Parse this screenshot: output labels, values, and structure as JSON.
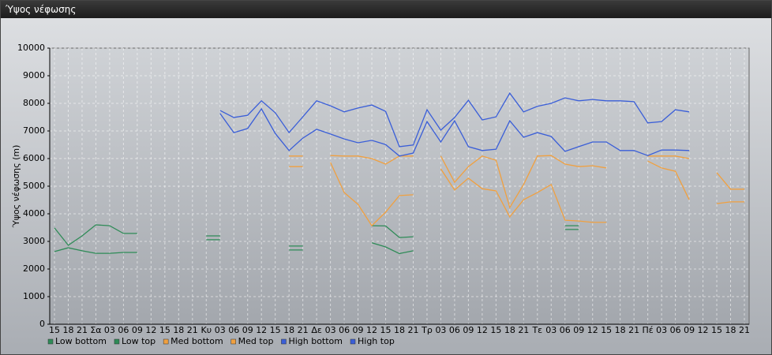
{
  "window_title": "Ύψος νέφωσης",
  "chart_data": {
    "type": "line",
    "y_label": "Ύψος νέφωσης (m)",
    "ylim": [
      0,
      10000
    ],
    "yticks": [
      0,
      1000,
      2000,
      3000,
      4000,
      5000,
      6000,
      7000,
      8000,
      9000,
      10000
    ],
    "grid": true,
    "legend": "bottom-left",
    "categories": [
      "15",
      "18",
      "21",
      "Σα",
      "03",
      "06",
      "09",
      "12",
      "15",
      "18",
      "21",
      "Κυ",
      "03",
      "06",
      "09",
      "12",
      "15",
      "18",
      "21",
      "Δε",
      "03",
      "06",
      "09",
      "12",
      "15",
      "18",
      "21",
      "Τρ",
      "03",
      "06",
      "09",
      "12",
      "15",
      "18",
      "21",
      "Τε",
      "03",
      "06",
      "09",
      "12",
      "15",
      "18",
      "21",
      "Πέ",
      "03",
      "06",
      "09",
      "12",
      "15",
      "18",
      "21"
    ],
    "series": [
      {
        "name": "Low bottom",
        "color": "#2e8b57",
        "values": [
          2630,
          2770,
          2660,
          2570,
          2570,
          2600,
          2600,
          null,
          null,
          null,
          null,
          3060,
          3060,
          null,
          null,
          null,
          null,
          2690,
          2690,
          null,
          null,
          null,
          null,
          2950,
          2800,
          2560,
          2660,
          null,
          null,
          null,
          null,
          null,
          null,
          null,
          null,
          null,
          null,
          3430,
          3430,
          null,
          null,
          null,
          null,
          null,
          null,
          null,
          null,
          null,
          null,
          null,
          null
        ]
      },
      {
        "name": "Low top",
        "color": "#2e8b57",
        "values": [
          3490,
          2860,
          3200,
          3600,
          3570,
          3290,
          3290,
          null,
          null,
          null,
          null,
          3200,
          3200,
          null,
          null,
          null,
          null,
          2830,
          2830,
          null,
          null,
          null,
          null,
          3570,
          3560,
          3140,
          3170,
          null,
          null,
          null,
          null,
          null,
          null,
          null,
          null,
          null,
          null,
          3570,
          3570,
          null,
          null,
          null,
          null,
          null,
          null,
          null,
          null,
          null,
          null,
          null,
          null
        ]
      },
      {
        "name": "Med bottom",
        "color": "#f0a040",
        "values": [
          null,
          null,
          null,
          null,
          null,
          null,
          null,
          null,
          null,
          null,
          null,
          null,
          null,
          null,
          null,
          null,
          null,
          5710,
          5710,
          null,
          5860,
          4770,
          4340,
          3570,
          4060,
          4660,
          4690,
          null,
          5630,
          4860,
          5290,
          4910,
          4830,
          3890,
          4510,
          4770,
          5060,
          3770,
          3740,
          3690,
          3690,
          null,
          null,
          5910,
          5660,
          5540,
          4510,
          null,
          4370,
          4430,
          4430
        ]
      },
      {
        "name": "Med top",
        "color": "#f0a040",
        "values": [
          null,
          null,
          null,
          null,
          null,
          null,
          null,
          null,
          null,
          null,
          null,
          null,
          null,
          null,
          null,
          null,
          null,
          6090,
          6090,
          null,
          6110,
          6090,
          6090,
          6000,
          5800,
          6090,
          6090,
          null,
          6090,
          5140,
          5710,
          6090,
          5940,
          4230,
          5060,
          6090,
          6110,
          5800,
          5710,
          5740,
          5660,
          null,
          null,
          6090,
          6090,
          6090,
          6000,
          null,
          5490,
          4890,
          4890
        ]
      },
      {
        "name": "High bottom",
        "color": "#3a5ed8",
        "values": [
          null,
          null,
          null,
          null,
          null,
          null,
          null,
          null,
          null,
          null,
          null,
          null,
          7630,
          6940,
          7090,
          7800,
          6910,
          6290,
          6740,
          7060,
          6890,
          6710,
          6570,
          6660,
          6510,
          6090,
          6200,
          7340,
          6600,
          7370,
          6430,
          6290,
          6340,
          7370,
          6770,
          6940,
          6800,
          6260,
          6430,
          6600,
          6600,
          6290,
          6290,
          6110,
          6310,
          6310,
          6290,
          null,
          null,
          null,
          null
        ]
      },
      {
        "name": "High top",
        "color": "#3a5ed8",
        "values": [
          null,
          null,
          null,
          null,
          null,
          null,
          null,
          null,
          null,
          null,
          null,
          null,
          7740,
          7490,
          7570,
          8090,
          7660,
          6940,
          7510,
          8090,
          7910,
          7690,
          7830,
          7940,
          7710,
          6430,
          6490,
          7770,
          7030,
          7490,
          8110,
          7400,
          7510,
          8370,
          7690,
          7890,
          8000,
          8200,
          8090,
          8140,
          8090,
          8090,
          8060,
          7290,
          7340,
          7770,
          7690,
          null,
          null,
          null,
          null
        ]
      }
    ]
  }
}
